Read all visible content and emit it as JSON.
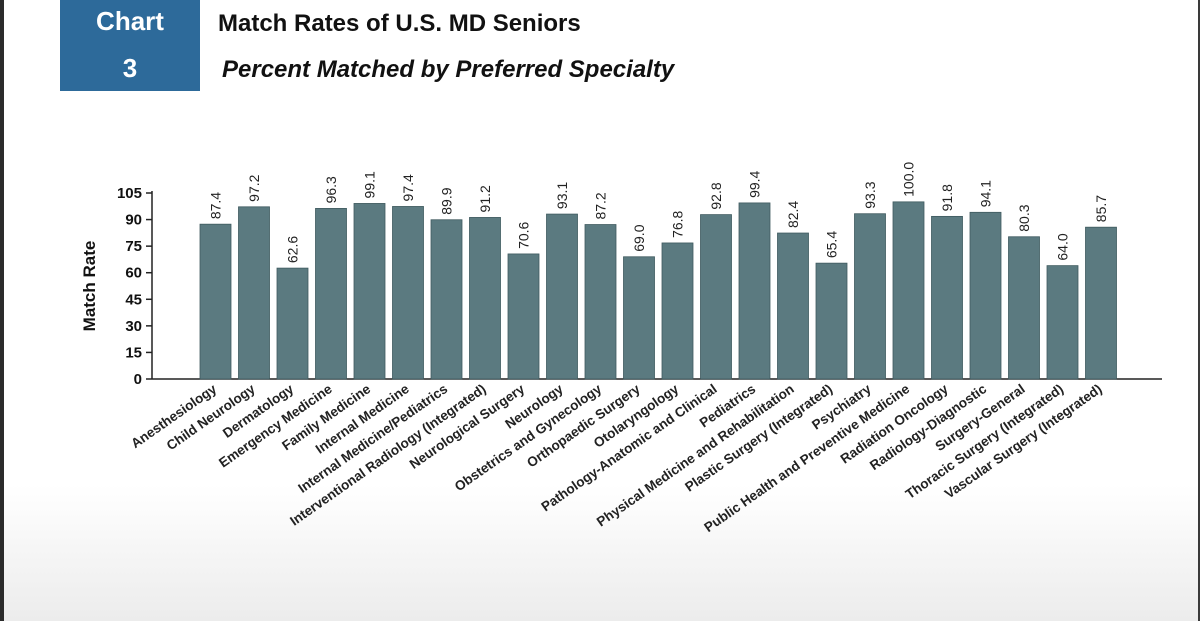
{
  "header": {
    "badge_word": "Chart",
    "badge_number": "3",
    "title": "Match Rates of U.S. MD Seniors",
    "subtitle": "Percent Matched by Preferred Specialty"
  },
  "colors": {
    "bar": "#5b7a80",
    "badge": "#2d6a9a",
    "text": "#111111"
  },
  "chart_data": {
    "type": "bar",
    "title": "Match Rates of U.S. MD Seniors",
    "subtitle": "Percent Matched by Preferred Specialty",
    "xlabel": "",
    "ylabel": "Match Rate",
    "ylim": [
      0,
      105
    ],
    "yticks": [
      "0",
      "15",
      "30",
      "45",
      "60",
      "75",
      "90",
      "105"
    ],
    "grid": false,
    "legend": "none",
    "categories": [
      "Anesthesiology",
      "Child Neurology",
      "Dermatology",
      "Emergency Medicine",
      "Family Medicine",
      "Internal Medicine",
      "Internal Medicine/Pediatrics",
      "Interventional Radiology (Integrated)",
      "Neurological Surgery",
      "Neurology",
      "Obstetrics and Gynecology",
      "Orthopaedic Surgery",
      "Otolaryngology",
      "Pathology-Anatomic and Clinical",
      "Pediatrics",
      "Physical Medicine and Rehabilitation",
      "Plastic Surgery (Integrated)",
      "Psychiatry",
      "Public Health and Preventive Medicine",
      "Radiation Oncology",
      "Radiology-Diagnostic",
      "Surgery-General",
      "Thoracic Surgery (Integrated)",
      "Vascular Surgery (Integrated)"
    ],
    "values": [
      87.4,
      97.2,
      62.6,
      96.3,
      99.1,
      97.4,
      89.9,
      91.2,
      70.6,
      93.1,
      87.2,
      69.0,
      76.8,
      92.8,
      99.4,
      82.4,
      65.4,
      93.3,
      100.0,
      91.8,
      94.1,
      80.3,
      64.0,
      85.7
    ],
    "value_labels": [
      "87.4",
      "97.2",
      "62.6",
      "96.3",
      "99.1",
      "97.4",
      "89.9",
      "91.2",
      "70.6",
      "93.1",
      "87.2",
      "69.0",
      "76.8",
      "92.8",
      "99.4",
      "82.4",
      "65.4",
      "93.3",
      "100.0",
      "91.8",
      "94.1",
      "80.3",
      "64.0",
      "85.7"
    ]
  }
}
